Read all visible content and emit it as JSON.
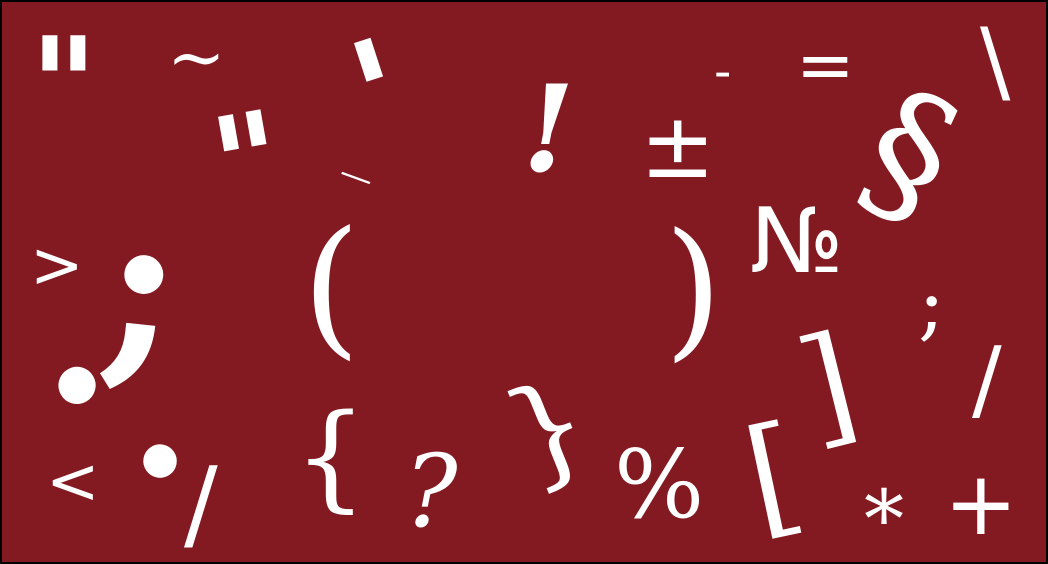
{
  "background_color": "#841a21",
  "glyph_color": "#ffffff",
  "glyphs": {
    "quote_top_left": "\"",
    "tilde": "~",
    "apostrophe_top": "'",
    "quote_mid": "\"",
    "underscore_mid": "_",
    "exclamation": "!",
    "plus_minus": "±",
    "macron_dash": "-",
    "equals": "=",
    "backslash": "\\",
    "section": "§",
    "numero": "№",
    "greater_than": ">",
    "semicolon_big": ";",
    "paren_left": "(",
    "paren_right": ")",
    "semicolon_small": ";",
    "bracket_right": "]",
    "slash_right": "/",
    "period_big": ".",
    "less_than": "<",
    "bullet_dot": ".",
    "slash_bottom": "/",
    "brace_left": "{",
    "question": "?",
    "brace_right": "}",
    "percent": "%",
    "bracket_left": "[",
    "asterisk": "*",
    "plus": "+"
  }
}
